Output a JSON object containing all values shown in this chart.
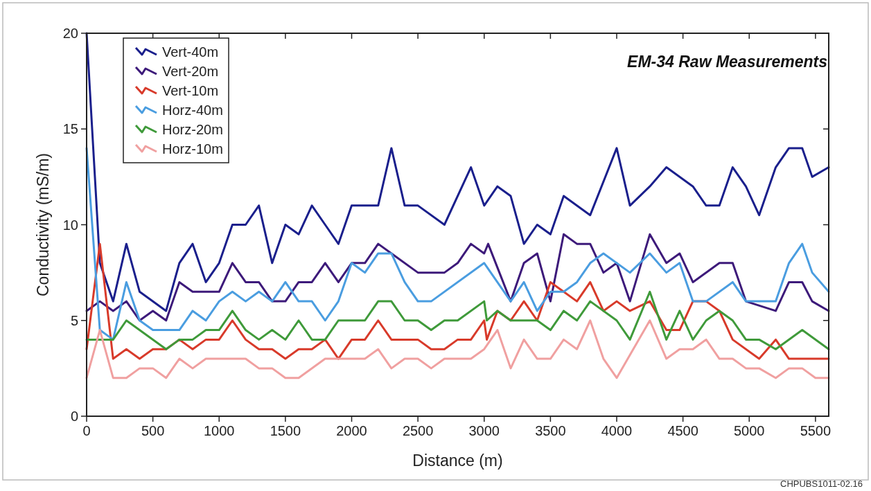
{
  "chart_data": {
    "type": "line",
    "title": "EM-34 Raw Measurements",
    "xlabel": "Distance (m)",
    "ylabel": "Conductivity (mS/m)",
    "annotations": [
      "CHPUBS1011-02.16"
    ],
    "xlim": [
      0,
      5600
    ],
    "xticks": [
      0,
      500,
      1000,
      1500,
      2000,
      2500,
      3000,
      3500,
      4000,
      4500,
      5000,
      5500
    ],
    "ylim": [
      0,
      20
    ],
    "yticks": [
      0,
      5,
      10,
      15,
      20
    ],
    "grid": false,
    "legend": "top left",
    "series": [
      {
        "name": "Vert-40m",
        "color": "#1a1f8c",
        "x": [
          0,
          100,
          200,
          300,
          400,
          600,
          700,
          800,
          900,
          1000,
          1100,
          1200,
          1300,
          1400,
          1500,
          1600,
          1700,
          1800,
          1900,
          2000,
          2200,
          2300,
          2400,
          2500,
          2700,
          2900,
          3000,
          3100,
          3200,
          3300,
          3400,
          3500,
          3600,
          3800,
          4000,
          4100,
          4250,
          4375,
          4575,
          4675,
          4775,
          4875,
          4975,
          5075,
          5200,
          5300,
          5400,
          5475,
          5600
        ],
        "values": [
          20,
          8,
          6,
          9,
          6.5,
          5.5,
          8,
          9,
          7,
          8,
          10,
          10,
          11,
          8,
          10,
          9.5,
          11,
          10,
          9,
          11,
          11,
          14,
          11,
          11,
          10,
          13,
          11,
          12,
          11.5,
          9,
          10,
          9.5,
          11.5,
          10.5,
          14,
          11,
          12,
          13,
          12,
          11,
          11,
          13,
          12,
          10.5,
          13,
          14,
          14,
          12.5,
          13
        ]
      },
      {
        "name": "Vert-20m",
        "color": "#3d1a7a",
        "x": [
          0,
          100,
          200,
          300,
          400,
          500,
          600,
          700,
          800,
          1000,
          1100,
          1200,
          1300,
          1400,
          1500,
          1600,
          1700,
          1800,
          1900,
          2000,
          2100,
          2200,
          2300,
          2500,
          2700,
          2800,
          2900,
          3000,
          3030,
          3200,
          3300,
          3400,
          3500,
          3600,
          3700,
          3800,
          3900,
          4000,
          4100,
          4250,
          4375,
          4475,
          4575,
          4775,
          4875,
          4975,
          5200,
          5300,
          5400,
          5475,
          5600
        ],
        "values": [
          5.5,
          6,
          5.5,
          6,
          5,
          5.5,
          5,
          7,
          6.5,
          6.5,
          8,
          7,
          7,
          6,
          6,
          7,
          7,
          8,
          7,
          8,
          8,
          9,
          8.5,
          7.5,
          7.5,
          8,
          9,
          8.5,
          9,
          6,
          8,
          8.5,
          6,
          9.5,
          9,
          9,
          7.5,
          8,
          6,
          9.5,
          8,
          8.5,
          7,
          8,
          8,
          6,
          5.5,
          7,
          7,
          6,
          5.5
        ]
      },
      {
        "name": "Vert-10m",
        "color": "#d83a2a",
        "x": [
          0,
          100,
          200,
          300,
          400,
          500,
          600,
          700,
          800,
          900,
          1000,
          1100,
          1200,
          1300,
          1400,
          1500,
          1600,
          1700,
          1800,
          1900,
          2000,
          2100,
          2200,
          2300,
          2500,
          2600,
          2700,
          2800,
          2900,
          3000,
          3020,
          3100,
          3200,
          3300,
          3400,
          3500,
          3600,
          3700,
          3800,
          3900,
          4000,
          4100,
          4250,
          4375,
          4475,
          4575,
          4675,
          4775,
          4875,
          5075,
          5200,
          5300,
          5600
        ],
        "values": [
          3.5,
          9,
          3,
          3.5,
          3,
          3.5,
          3.5,
          4,
          3.5,
          4,
          4,
          5,
          4,
          3.5,
          3.5,
          3,
          3.5,
          3.5,
          4,
          3,
          4,
          4,
          5,
          4,
          4,
          3.5,
          3.5,
          4,
          4,
          5,
          4,
          5.5,
          5,
          6,
          5,
          7,
          6.5,
          6,
          7,
          5.5,
          6,
          5.5,
          6,
          4.5,
          4.5,
          6,
          6,
          5.5,
          4,
          3,
          4,
          3,
          3
        ]
      },
      {
        "name": "Horz-40m",
        "color": "#4a9de0",
        "x": [
          0,
          100,
          200,
          300,
          400,
          500,
          700,
          800,
          900,
          1000,
          1100,
          1200,
          1300,
          1400,
          1500,
          1600,
          1700,
          1800,
          1900,
          2000,
          2100,
          2200,
          2300,
          2400,
          2500,
          2600,
          3000,
          3200,
          3300,
          3400,
          3500,
          3600,
          3700,
          3800,
          3900,
          4100,
          4250,
          4375,
          4475,
          4575,
          4675,
          4875,
          4975,
          5200,
          5300,
          5400,
          5475,
          5600
        ],
        "values": [
          14,
          4.5,
          4,
          7,
          5,
          4.5,
          4.5,
          5.5,
          5,
          6,
          6.5,
          6,
          6.5,
          6,
          7,
          6,
          6,
          5,
          6,
          8,
          7.5,
          8.5,
          8.5,
          7,
          6,
          6,
          8,
          6,
          7,
          5.5,
          6.5,
          6.5,
          7,
          8,
          8.5,
          7.5,
          8.5,
          7.5,
          8,
          6,
          6,
          7,
          6,
          6,
          8,
          9,
          7.5,
          6.5
        ]
      },
      {
        "name": "Horz-20m",
        "color": "#3f9a3a",
        "x": [
          0,
          200,
          300,
          600,
          700,
          800,
          900,
          1000,
          1100,
          1200,
          1300,
          1400,
          1500,
          1600,
          1700,
          1800,
          1900,
          2100,
          2200,
          2300,
          2400,
          2500,
          2600,
          2700,
          2800,
          3000,
          3020,
          3100,
          3200,
          3400,
          3500,
          3600,
          3700,
          3800,
          4000,
          4100,
          4250,
          4375,
          4475,
          4575,
          4675,
          4775,
          4875,
          4975,
          5075,
          5200,
          5400,
          5600
        ],
        "values": [
          4,
          4,
          5,
          3.5,
          4,
          4,
          4.5,
          4.5,
          5.5,
          4.5,
          4,
          4.5,
          4,
          5,
          4,
          4,
          5,
          5,
          6,
          6,
          5,
          5,
          4.5,
          5,
          5,
          6,
          5,
          5.5,
          5,
          5,
          4.5,
          5.5,
          5,
          6,
          5,
          4,
          6.5,
          4,
          5.5,
          4,
          5,
          5.5,
          5,
          4,
          4,
          3.5,
          4.5,
          3.5
        ]
      },
      {
        "name": "Horz-10m",
        "color": "#f0a0a0",
        "x": [
          0,
          100,
          200,
          300,
          400,
          500,
          600,
          700,
          800,
          900,
          1200,
          1300,
          1400,
          1500,
          1600,
          1800,
          2100,
          2200,
          2300,
          2400,
          2500,
          2600,
          2700,
          2900,
          3000,
          3100,
          3200,
          3300,
          3400,
          3500,
          3600,
          3700,
          3800,
          3900,
          4000,
          4250,
          4375,
          4475,
          4575,
          4675,
          4775,
          4875,
          4975,
          5075,
          5200,
          5300,
          5400,
          5500,
          5600
        ],
        "values": [
          2,
          4.5,
          2,
          2,
          2.5,
          2.5,
          2,
          3,
          2.5,
          3,
          3,
          2.5,
          2.5,
          2,
          2,
          3,
          3,
          3.5,
          2.5,
          3,
          3,
          2.5,
          3,
          3,
          3.5,
          4.5,
          2.5,
          4,
          3,
          3,
          4,
          3.5,
          5,
          3,
          2,
          5,
          3,
          3.5,
          3.5,
          4,
          3,
          3,
          2.5,
          2.5,
          2,
          2.5,
          2.5,
          2,
          2
        ]
      }
    ]
  }
}
